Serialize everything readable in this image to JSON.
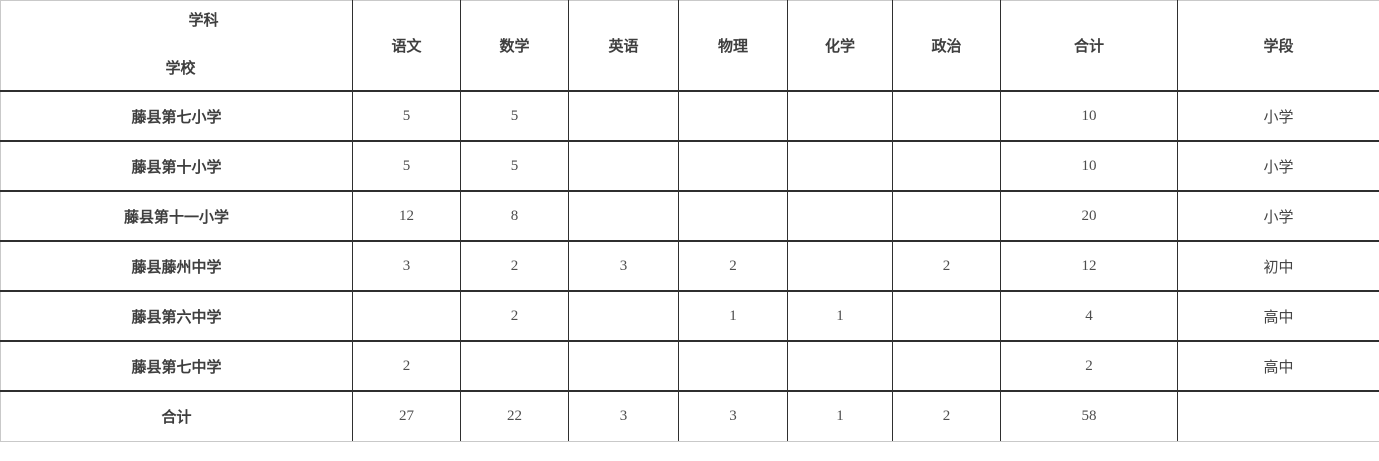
{
  "table": {
    "corner": {
      "top_label": "学科",
      "bottom_label": "学校"
    },
    "columns": [
      "语文",
      "数学",
      "英语",
      "物理",
      "化学",
      "政治",
      "合计",
      "学段"
    ],
    "rows": [
      {
        "school": "藤县第七小学",
        "is_total": false,
        "values": [
          "5",
          "5",
          "",
          "",
          "",
          "",
          "10",
          "小学"
        ]
      },
      {
        "school": "藤县第十小学",
        "is_total": false,
        "values": [
          "5",
          "5",
          "",
          "",
          "",
          "",
          "10",
          "小学"
        ]
      },
      {
        "school": "藤县第十一小学",
        "is_total": false,
        "values": [
          "12",
          "8",
          "",
          "",
          "",
          "",
          "20",
          "小学"
        ]
      },
      {
        "school": "藤县藤州中学",
        "is_total": false,
        "values": [
          "3",
          "2",
          "3",
          "2",
          "",
          "2",
          "12",
          "初中"
        ]
      },
      {
        "school": "藤县第六中学",
        "is_total": false,
        "values": [
          "",
          "2",
          "",
          "1",
          "1",
          "",
          "4",
          "高中"
        ]
      },
      {
        "school": "藤县第七中学",
        "is_total": false,
        "values": [
          "2",
          "",
          "",
          "",
          "",
          "",
          "2",
          "高中"
        ]
      },
      {
        "school": "合计",
        "is_total": true,
        "values": [
          "27",
          "22",
          "3",
          "3",
          "1",
          "2",
          "58",
          ""
        ]
      }
    ]
  },
  "colors": {
    "border_inner": "#2f2f2f",
    "border_outer": "#c9c9c9",
    "text_bold": "#3e3e3e",
    "text_number": "#4d4d4d"
  }
}
